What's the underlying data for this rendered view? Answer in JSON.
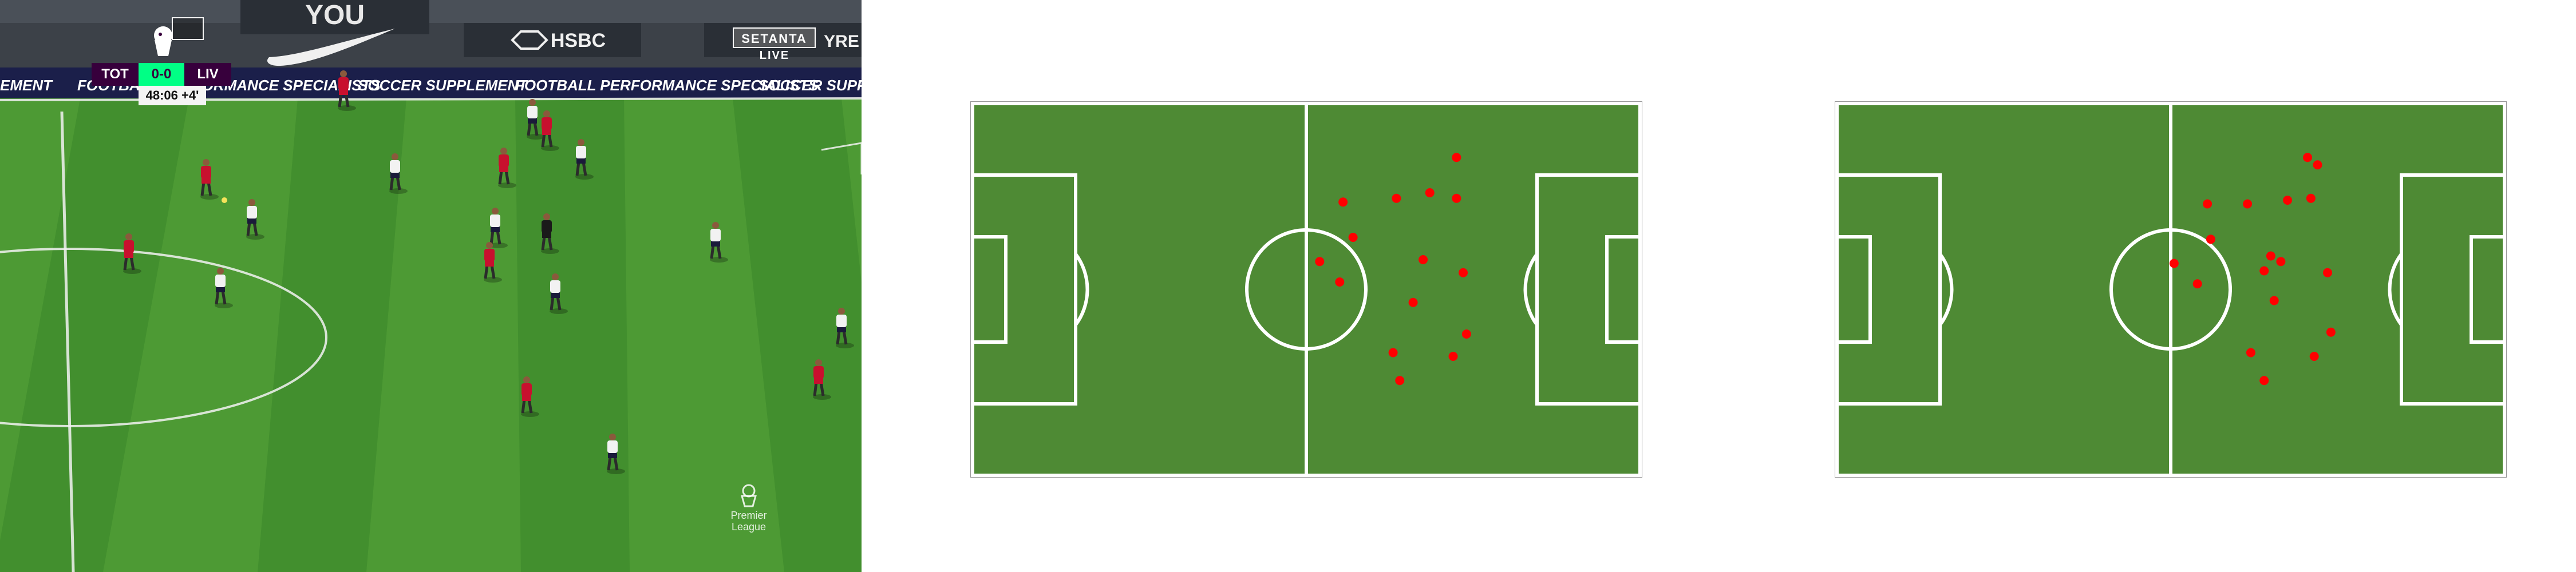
{
  "broadcast": {
    "home_team": "TOT",
    "score": "0-0",
    "away_team": "LIV",
    "match_clock": "48:06",
    "added_time": "+4'",
    "broadcaster": "SETANTA",
    "live_label": "LIVE",
    "league_watermark": [
      "Premier",
      "League"
    ],
    "ad_boards": [
      "EMENT",
      "FOOTBALL PERFORMANCE SPECIALISTS",
      "SOCCER SUPPLEMENT",
      "FOOTBALL PERFORMANCE SPECIALISTS",
      "SOCCER SUPPLEMENT"
    ],
    "stand_signs": [
      "YOU",
      "HSBC",
      "YRE"
    ],
    "colors": {
      "home_kit": "#f2f2f2",
      "away_kit": "#c8102e",
      "score_bg": "#00ff85",
      "team_bg": "#37003c",
      "grass_light": "#4d9a34",
      "grass_dark": "#3f8a2c"
    }
  },
  "pitch_maps": [
    {
      "name": "pitch-map-left",
      "colors": {
        "field": "#4e8a34",
        "lines": "#ffffff",
        "player": "#ff0000"
      },
      "players_pct": [
        [
          0.725,
          0.145
        ],
        [
          0.555,
          0.265
        ],
        [
          0.635,
          0.255
        ],
        [
          0.685,
          0.24
        ],
        [
          0.725,
          0.255
        ],
        [
          0.57,
          0.36
        ],
        [
          0.52,
          0.425
        ],
        [
          0.675,
          0.42
        ],
        [
          0.735,
          0.455
        ],
        [
          0.55,
          0.48
        ],
        [
          0.66,
          0.535
        ],
        [
          0.74,
          0.62
        ],
        [
          0.63,
          0.67
        ],
        [
          0.72,
          0.68
        ],
        [
          0.64,
          0.745
        ]
      ]
    },
    {
      "name": "pitch-map-right",
      "colors": {
        "field": "#4e8a34",
        "lines": "#ffffff",
        "player": "#ff0000"
      },
      "players_pct": [
        [
          0.705,
          0.145
        ],
        [
          0.72,
          0.165
        ],
        [
          0.555,
          0.27
        ],
        [
          0.615,
          0.27
        ],
        [
          0.675,
          0.26
        ],
        [
          0.71,
          0.255
        ],
        [
          0.56,
          0.365
        ],
        [
          0.65,
          0.41
        ],
        [
          0.665,
          0.425
        ],
        [
          0.505,
          0.43
        ],
        [
          0.64,
          0.45
        ],
        [
          0.735,
          0.455
        ],
        [
          0.54,
          0.485
        ],
        [
          0.655,
          0.53
        ],
        [
          0.74,
          0.615
        ],
        [
          0.62,
          0.67
        ],
        [
          0.715,
          0.68
        ],
        [
          0.64,
          0.745
        ]
      ]
    }
  ]
}
